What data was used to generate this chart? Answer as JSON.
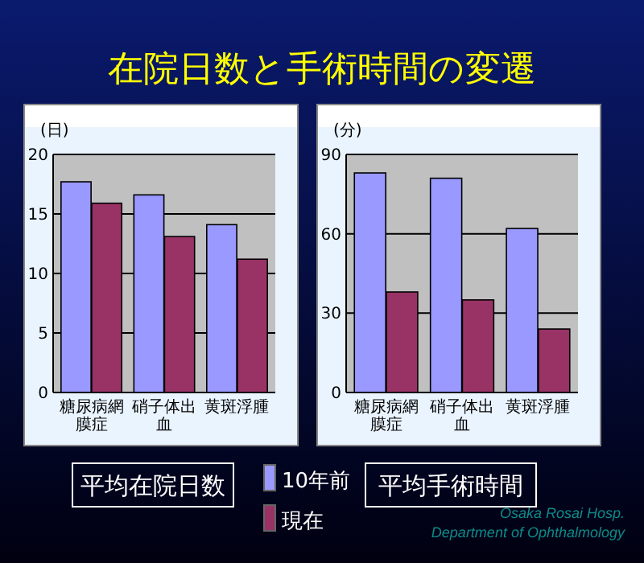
{
  "chart_data": [
    {
      "type": "bar",
      "title": "在院日数と手術時間の変遷",
      "xlabel": "平均在院日数",
      "ylabel": "(日)",
      "categories": [
        "糖尿病網膜症",
        "硝子体出血",
        "黄斑浮腫"
      ],
      "series": [
        {
          "name": "10年前",
          "color": "#9999ff",
          "values": [
            17.7,
            16.6,
            14.1
          ]
        },
        {
          "name": "現在",
          "color": "#993366",
          "values": [
            15.9,
            13.1,
            11.2
          ]
        }
      ],
      "ylim": [
        0,
        20
      ],
      "yticks": [
        0,
        5,
        10,
        15,
        20
      ],
      "grid": "y",
      "legend": "bottom"
    },
    {
      "type": "bar",
      "xlabel": "平均手術時間",
      "ylabel": "(分)",
      "categories": [
        "糖尿病網膜症",
        "硝子体出血",
        "黄斑浮腫"
      ],
      "series": [
        {
          "color": "#9999ff",
          "values": [
            83,
            81,
            62
          ]
        },
        {
          "color": "#993366",
          "values": [
            38,
            35,
            24
          ]
        }
      ],
      "ylim": [
        0,
        90
      ],
      "yticks": [
        0,
        30,
        60,
        90
      ],
      "grid": "y",
      "annotations": [
        "Osaka Rosai Hosp.",
        "Department of Ophthalmology"
      ]
    }
  ]
}
